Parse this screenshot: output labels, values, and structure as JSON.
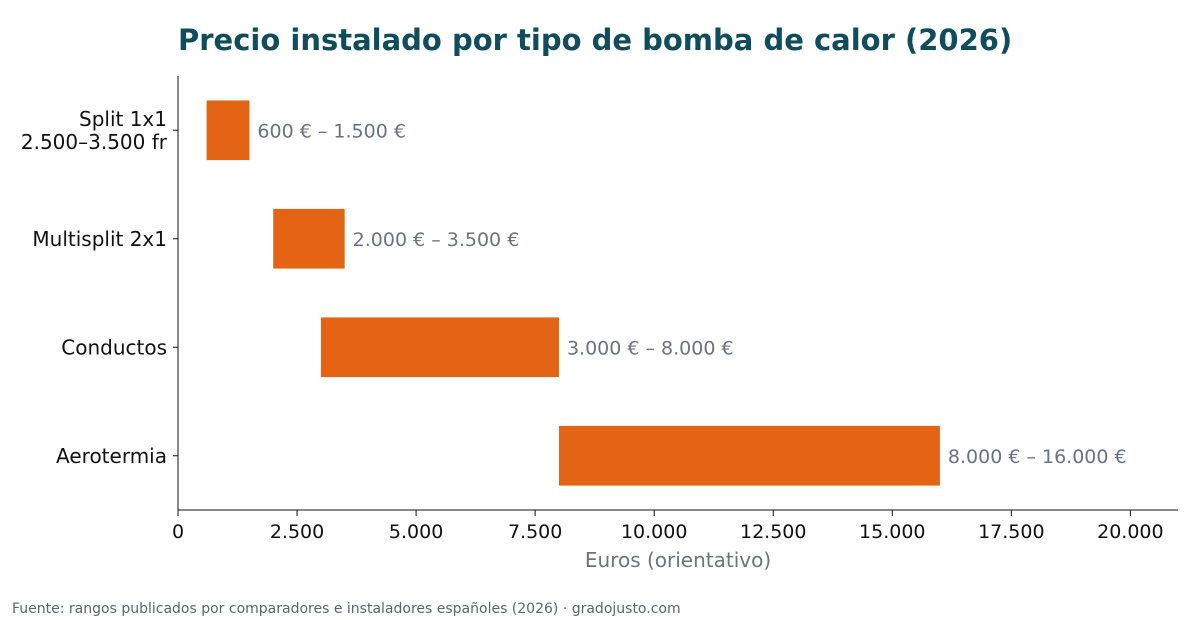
{
  "chart_data": {
    "type": "bar",
    "orientation": "horizontal-range",
    "title": "Precio instalado por tipo de bomba de calor (2026)",
    "xlabel": "Euros (orientativo)",
    "ylabel": "",
    "xlim": [
      0,
      21000
    ],
    "x_ticks": [
      0,
      2500,
      5000,
      7500,
      10000,
      12500,
      15000,
      17500,
      20000
    ],
    "x_tick_labels": [
      "0",
      "2.500",
      "5.000",
      "7.500",
      "10.000",
      "12.500",
      "15.000",
      "17.500",
      "20.000"
    ],
    "categories": [
      {
        "label_lines": [
          "Split 1x1",
          "2.500–3.500 fr"
        ],
        "min": 600,
        "max": 1500,
        "label": "600 € – 1.500 €"
      },
      {
        "label_lines": [
          "Multisplit 2x1"
        ],
        "min": 2000,
        "max": 3500,
        "label": "2.000 € – 3.500 €"
      },
      {
        "label_lines": [
          "Conductos"
        ],
        "min": 3000,
        "max": 8000,
        "label": "3.000 € – 8.000 €"
      },
      {
        "label_lines": [
          "Aerotermia"
        ],
        "min": 8000,
        "max": 16000,
        "label": "8.000 € – 16.000 €"
      }
    ],
    "bar_color": "#e36414",
    "grid": false,
    "legend": "none"
  },
  "source_note": "Fuente: rangos publicados por comparadores e instaladores españoles (2026)  ·  gradojusto.com"
}
